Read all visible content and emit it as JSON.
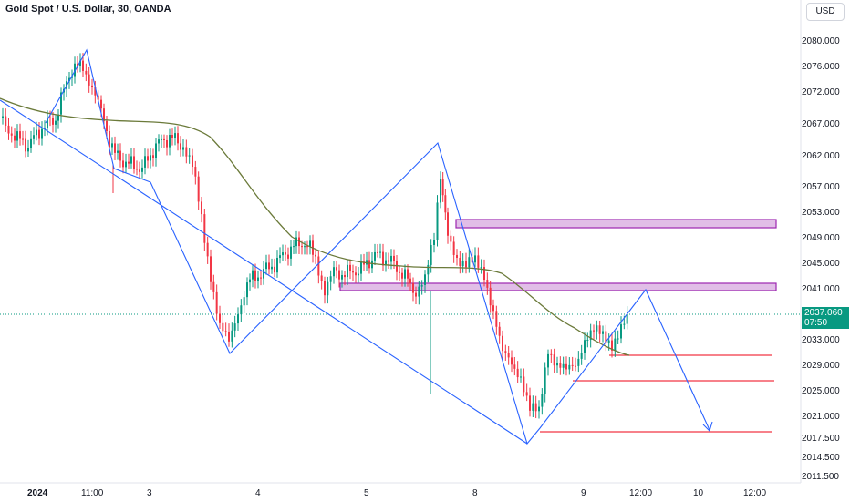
{
  "header": {
    "title": "Gold Spot / U.S. Dollar, 30, OANDA",
    "currency": "USD"
  },
  "price_axis": {
    "labels": [
      {
        "text": "2080.000",
        "value": 2080.0
      },
      {
        "text": "2076.000",
        "value": 2076.0
      },
      {
        "text": "2072.000",
        "value": 2072.0
      },
      {
        "text": "2067.000",
        "value": 2067.0
      },
      {
        "text": "2062.000",
        "value": 2062.0
      },
      {
        "text": "2057.000",
        "value": 2057.0
      },
      {
        "text": "2053.000",
        "value": 2053.0
      },
      {
        "text": "2049.000",
        "value": 2049.0
      },
      {
        "text": "2045.000",
        "value": 2045.0
      },
      {
        "text": "2041.000",
        "value": 2041.0
      },
      {
        "text": "2033.000",
        "value": 2033.0
      },
      {
        "text": "2029.000",
        "value": 2029.0
      },
      {
        "text": "2025.000",
        "value": 2025.0
      },
      {
        "text": "2021.000",
        "value": 2021.0
      },
      {
        "text": "2017.500",
        "value": 2017.5
      },
      {
        "text": "2014.500",
        "value": 2014.5
      },
      {
        "text": "2011.500",
        "value": 2011.5
      }
    ],
    "last_price": "2037.060",
    "countdown": "07:50"
  },
  "time_axis": {
    "labels": [
      "2024",
      "11:00",
      "3",
      "4",
      "5",
      "8",
      "9",
      "12:00",
      "10",
      "12:00"
    ]
  },
  "colors": {
    "up": "#089981",
    "down": "#f23645",
    "ma": "#6b7a3a",
    "drawing": "#2962ff",
    "zone_fill": "#e1bee7",
    "zone_border": "#9c27b0",
    "support": "#f23645"
  }
}
